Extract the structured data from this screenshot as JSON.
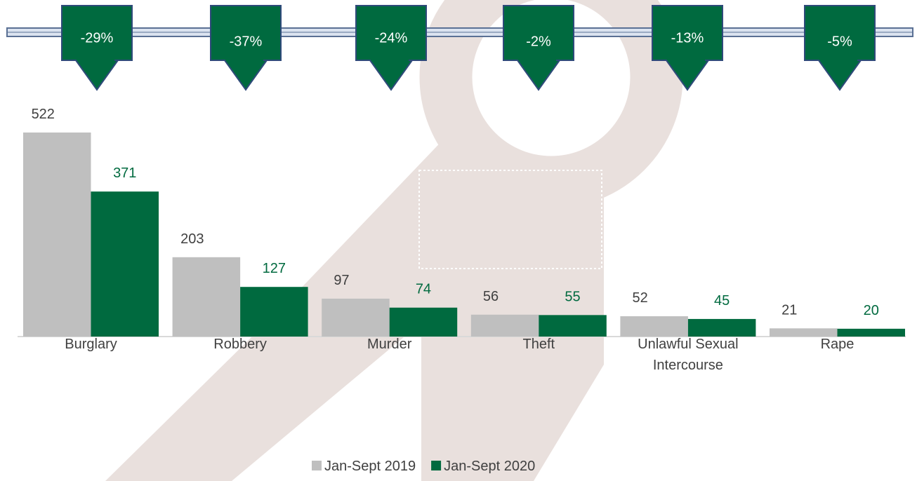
{
  "chart_data": {
    "type": "bar",
    "categories": [
      "Burglary",
      "Robbery",
      "Murder",
      "Theft",
      "Unlawful Sexual Intercourse",
      "Rape"
    ],
    "series": [
      {
        "name": "Jan-Sept 2019",
        "color": "#bfbfbf",
        "values": [
          522,
          203,
          97,
          56,
          52,
          21
        ]
      },
      {
        "name": "Jan-Sept 2020",
        "color": "#006a3f",
        "values": [
          371,
          127,
          74,
          55,
          45,
          20
        ]
      }
    ],
    "changes": [
      "-29%",
      "-37%",
      "-24%",
      "-2%",
      "-13%",
      "-5%"
    ],
    "legend": "bottom"
  }
}
